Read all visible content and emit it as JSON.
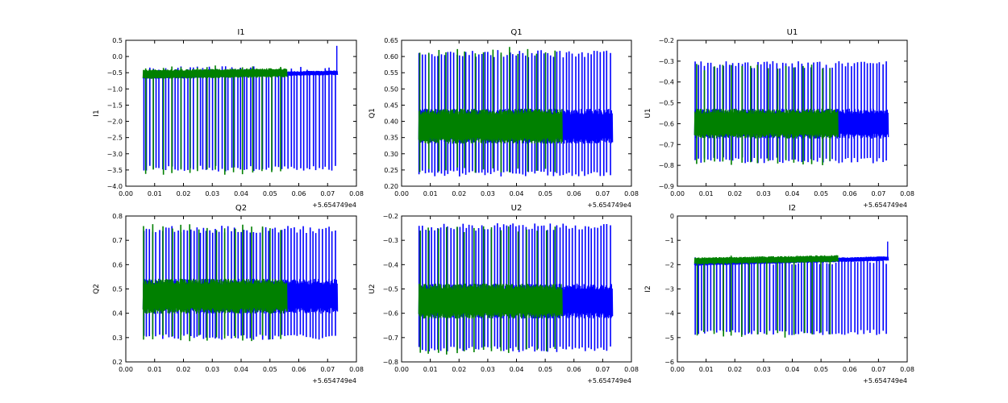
{
  "figure": {
    "background": "#ffffff"
  },
  "chart_data": [
    {
      "type": "line",
      "title": "I1",
      "ylabel": "I1",
      "xlabel": "",
      "x_offset": "+5.654749e4",
      "xlim": [
        0,
        0.08
      ],
      "xticks": [
        "0.00",
        "0.01",
        "0.02",
        "0.03",
        "0.04",
        "0.05",
        "0.06",
        "0.07",
        "0.08"
      ],
      "ylim": [
        -4.0,
        0.5
      ],
      "yticks": [
        "0.5",
        "0.0",
        "−0.5",
        "−1.0",
        "−1.5",
        "−2.0",
        "−2.5",
        "−3.0",
        "−3.5",
        "−4.0"
      ],
      "ytick_values": [
        0.5,
        0.0,
        -0.5,
        -1.0,
        -1.5,
        -2.0,
        -2.5,
        -3.0,
        -3.5,
        -4.0
      ],
      "series": [
        {
          "name": "blue",
          "color": "#0000ff",
          "x_start": 0.006,
          "x_end": 0.0735,
          "baseline_start": -0.62,
          "baseline_end": -0.5,
          "band": 0.06,
          "spikes_min": -3.55,
          "spikes_max": -0.3,
          "spike_count": 62,
          "end_spike_max": 0.33
        },
        {
          "name": "green",
          "color": "#008000",
          "x_start": 0.006,
          "x_end": 0.056,
          "baseline_start": -0.55,
          "baseline_end": -0.5,
          "band": 0.12,
          "spikes_min": -3.65,
          "spikes_max": -0.25,
          "spike_count": 16
        }
      ]
    },
    {
      "type": "line",
      "title": "Q1",
      "ylabel": "Q1",
      "xlabel": "",
      "x_offset": "+5.654749e4",
      "xlim": [
        0,
        0.08
      ],
      "xticks": [
        "0.00",
        "0.01",
        "0.02",
        "0.03",
        "0.04",
        "0.05",
        "0.06",
        "0.07",
        "0.08"
      ],
      "ylim": [
        0.2,
        0.65
      ],
      "yticks": [
        "0.65",
        "0.60",
        "0.55",
        "0.50",
        "0.45",
        "0.40",
        "0.35",
        "0.30",
        "0.25",
        "0.20"
      ],
      "ytick_values": [
        0.65,
        0.6,
        0.55,
        0.5,
        0.45,
        0.4,
        0.35,
        0.3,
        0.25,
        0.2
      ],
      "series": [
        {
          "name": "blue",
          "color": "#0000ff",
          "x_start": 0.006,
          "x_end": 0.0735,
          "baseline_start": 0.385,
          "baseline_end": 0.385,
          "band": 0.045,
          "spikes_min": 0.23,
          "spikes_max": 0.62,
          "spike_count": 62
        },
        {
          "name": "green",
          "color": "#008000",
          "x_start": 0.006,
          "x_end": 0.056,
          "baseline_start": 0.385,
          "baseline_end": 0.385,
          "band": 0.045,
          "spikes_min": 0.24,
          "spikes_max": 0.63,
          "spike_count": 16
        }
      ]
    },
    {
      "type": "line",
      "title": "U1",
      "ylabel": "U1",
      "xlabel": "",
      "x_offset": "+5.654749e4",
      "xlim": [
        0,
        0.08
      ],
      "xticks": [
        "0.00",
        "0.01",
        "0.02",
        "0.03",
        "0.04",
        "0.05",
        "0.06",
        "0.07",
        "0.08"
      ],
      "ylim": [
        -0.9,
        -0.2
      ],
      "yticks": [
        "−0.2",
        "−0.3",
        "−0.4",
        "−0.5",
        "−0.6",
        "−0.7",
        "−0.8",
        "−0.9"
      ],
      "ytick_values": [
        -0.2,
        -0.3,
        -0.4,
        -0.5,
        -0.6,
        -0.7,
        -0.8,
        -0.9
      ],
      "series": [
        {
          "name": "blue",
          "color": "#0000ff",
          "x_start": 0.006,
          "x_end": 0.0735,
          "baseline_start": -0.6,
          "baseline_end": -0.6,
          "band": 0.06,
          "spikes_min": -0.79,
          "spikes_max": -0.3,
          "spike_count": 62
        },
        {
          "name": "green",
          "color": "#008000",
          "x_start": 0.006,
          "x_end": 0.056,
          "baseline_start": -0.6,
          "baseline_end": -0.6,
          "band": 0.06,
          "spikes_min": -0.8,
          "spikes_max": -0.31,
          "spike_count": 16
        }
      ]
    },
    {
      "type": "line",
      "title": "Q2",
      "ylabel": "Q2",
      "xlabel": "",
      "x_offset": "+5.654749e4",
      "xlim": [
        0,
        0.08
      ],
      "xticks": [
        "0.00",
        "0.01",
        "0.02",
        "0.03",
        "0.04",
        "0.05",
        "0.06",
        "0.07",
        "0.08"
      ],
      "ylim": [
        0.2,
        0.8
      ],
      "yticks": [
        "0.8",
        "0.7",
        "0.6",
        "0.5",
        "0.4",
        "0.3",
        "0.2"
      ],
      "ytick_values": [
        0.8,
        0.7,
        0.6,
        0.5,
        0.4,
        0.3,
        0.2
      ],
      "series": [
        {
          "name": "blue",
          "color": "#0000ff",
          "x_start": 0.006,
          "x_end": 0.0735,
          "baseline_start": 0.47,
          "baseline_end": 0.47,
          "band": 0.06,
          "spikes_min": 0.29,
          "spikes_max": 0.76,
          "spike_count": 62
        },
        {
          "name": "green",
          "color": "#008000",
          "x_start": 0.006,
          "x_end": 0.056,
          "baseline_start": 0.47,
          "baseline_end": 0.47,
          "band": 0.06,
          "spikes_min": 0.285,
          "spikes_max": 0.77,
          "spike_count": 16
        }
      ]
    },
    {
      "type": "line",
      "title": "U2",
      "ylabel": "U2",
      "xlabel": "",
      "x_offset": "+5.654749e4",
      "xlim": [
        0,
        0.08
      ],
      "xticks": [
        "0.00",
        "0.01",
        "0.02",
        "0.03",
        "0.04",
        "0.05",
        "0.06",
        "0.07",
        "0.08"
      ],
      "ylim": [
        -0.8,
        -0.2
      ],
      "yticks": [
        "−0.2",
        "−0.3",
        "−0.4",
        "−0.5",
        "−0.6",
        "−0.7",
        "−0.8"
      ],
      "ytick_values": [
        -0.2,
        -0.3,
        -0.4,
        -0.5,
        -0.6,
        -0.7,
        -0.8
      ],
      "series": [
        {
          "name": "blue",
          "color": "#0000ff",
          "x_start": 0.006,
          "x_end": 0.0735,
          "baseline_start": -0.55,
          "baseline_end": -0.55,
          "band": 0.06,
          "spikes_min": -0.76,
          "spikes_max": -0.23,
          "spike_count": 62
        },
        {
          "name": "green",
          "color": "#008000",
          "x_start": 0.006,
          "x_end": 0.056,
          "baseline_start": -0.55,
          "baseline_end": -0.55,
          "band": 0.06,
          "spikes_min": -0.77,
          "spikes_max": -0.24,
          "spike_count": 16
        }
      ]
    },
    {
      "type": "line",
      "title": "I2",
      "ylabel": "I2",
      "xlabel": "",
      "x_offset": "+5.654749e4",
      "xlim": [
        0,
        0.08
      ],
      "xticks": [
        "0.00",
        "0.01",
        "0.02",
        "0.03",
        "0.04",
        "0.05",
        "0.06",
        "0.07",
        "0.08"
      ],
      "ylim": [
        -6,
        0
      ],
      "yticks": [
        "0",
        "−1",
        "−2",
        "−3",
        "−4",
        "−5",
        "−6"
      ],
      "ytick_values": [
        0,
        -1,
        -2,
        -3,
        -4,
        -5,
        -6
      ],
      "series": [
        {
          "name": "blue",
          "color": "#0000ff",
          "x_start": 0.006,
          "x_end": 0.0735,
          "baseline_start": -1.95,
          "baseline_end": -1.75,
          "band": 0.08,
          "spikes_min": -4.9,
          "spikes_max": -1.7,
          "spike_count": 62,
          "end_spike_max": -1.05
        },
        {
          "name": "green",
          "color": "#008000",
          "x_start": 0.006,
          "x_end": 0.056,
          "baseline_start": -1.85,
          "baseline_end": -1.75,
          "band": 0.12,
          "spikes_min": -5.0,
          "spikes_max": -1.6,
          "spike_count": 16
        }
      ]
    }
  ]
}
